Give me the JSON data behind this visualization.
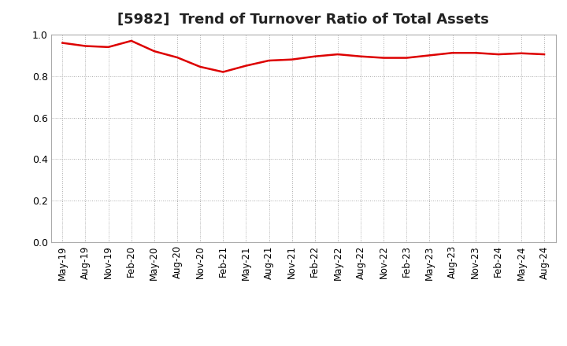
{
  "title": "[5982]  Trend of Turnover Ratio of Total Assets",
  "x_labels": [
    "May-19",
    "Aug-19",
    "Nov-19",
    "Feb-20",
    "May-20",
    "Aug-20",
    "Nov-20",
    "Feb-21",
    "May-21",
    "Aug-21",
    "Nov-21",
    "Feb-22",
    "May-22",
    "Aug-22",
    "Nov-22",
    "Feb-23",
    "May-23",
    "Aug-23",
    "Nov-23",
    "Feb-24",
    "May-24",
    "Aug-24"
  ],
  "values": [
    0.96,
    0.945,
    0.94,
    0.97,
    0.92,
    0.89,
    0.845,
    0.82,
    0.85,
    0.875,
    0.88,
    0.895,
    0.905,
    0.895,
    0.888,
    0.888,
    0.9,
    0.912,
    0.912,
    0.905,
    0.91,
    0.905
  ],
  "line_color": "#dd0000",
  "line_width": 1.8,
  "ylim": [
    0.0,
    1.0
  ],
  "yticks": [
    0.0,
    0.2,
    0.4,
    0.6,
    0.8,
    1.0
  ],
  "grid_color": "#aaaaaa",
  "bg_color": "#ffffff",
  "title_fontsize": 13,
  "tick_fontsize": 8.5,
  "title_color": "#222222"
}
